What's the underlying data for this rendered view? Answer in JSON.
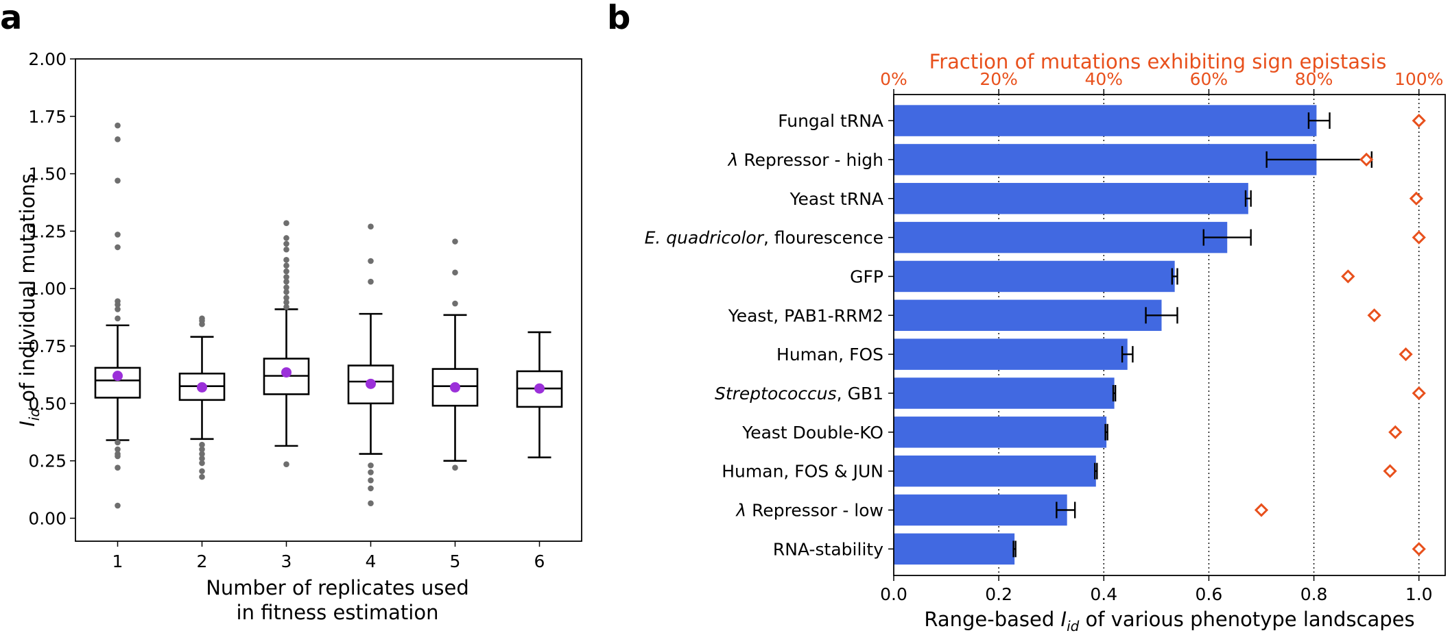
{
  "chart_data": [
    {
      "panel": "a",
      "type": "box",
      "xlabel_line1": "Number of replicates used",
      "xlabel_line2": "in fitness estimation",
      "ylabel_symbol": "I",
      "ylabel_sub": "id",
      "ylabel_rest": " of individual mutations",
      "ylim": [
        -0.1,
        2.0
      ],
      "yticks": [
        "0.00",
        "0.25",
        "0.50",
        "0.75",
        "1.00",
        "1.25",
        "1.50",
        "1.75",
        "2.00"
      ],
      "categories": [
        "1",
        "2",
        "3",
        "4",
        "5",
        "6"
      ],
      "boxes": [
        {
          "whisker_low": 0.34,
          "q1": 0.525,
          "median": 0.6,
          "q3": 0.655,
          "whisker_high": 0.84,
          "mean": 0.62,
          "outliers": [
            1.71,
            1.65,
            1.47,
            1.235,
            1.18,
            0.945,
            0.93,
            0.91,
            0.87,
            0.33,
            0.3,
            0.28,
            0.27,
            0.22,
            0.055
          ]
        },
        {
          "whisker_low": 0.345,
          "q1": 0.515,
          "median": 0.575,
          "q3": 0.63,
          "whisker_high": 0.79,
          "mean": 0.57,
          "outliers": [
            0.87,
            0.86,
            0.845,
            0.32,
            0.3,
            0.28,
            0.26,
            0.24,
            0.205,
            0.18
          ]
        },
        {
          "whisker_low": 0.315,
          "q1": 0.54,
          "median": 0.62,
          "q3": 0.695,
          "whisker_high": 0.91,
          "mean": 0.635,
          "outliers": [
            1.285,
            1.22,
            1.195,
            1.17,
            1.125,
            1.1,
            1.075,
            1.05,
            1.03,
            1.005,
            0.985,
            0.96,
            0.94,
            0.92,
            0.235
          ]
        },
        {
          "whisker_low": 0.28,
          "q1": 0.5,
          "median": 0.595,
          "q3": 0.665,
          "whisker_high": 0.89,
          "mean": 0.585,
          "outliers": [
            1.27,
            1.12,
            1.03,
            0.23,
            0.2,
            0.165,
            0.13,
            0.065
          ]
        },
        {
          "whisker_low": 0.25,
          "q1": 0.49,
          "median": 0.575,
          "q3": 0.65,
          "whisker_high": 0.885,
          "mean": 0.57,
          "outliers": [
            1.205,
            1.07,
            0.935,
            0.22
          ]
        },
        {
          "whisker_low": 0.265,
          "q1": 0.485,
          "median": 0.565,
          "q3": 0.64,
          "whisker_high": 0.81,
          "mean": 0.565,
          "outliers": []
        }
      ]
    },
    {
      "panel": "b",
      "type": "bar",
      "orientation": "horizontal",
      "xlabel_prefix": "Range-based ",
      "xlabel_symbol": "I",
      "xlabel_sub": "id",
      "xlabel_rest": " of various phenotype landscapes",
      "top_xlabel": "Fraction of mutations exhibiting sign epistasis",
      "xlim": [
        0.0,
        1.05
      ],
      "xticks": [
        "0.0",
        "0.2",
        "0.4",
        "0.6",
        "0.8",
        "1.0"
      ],
      "top_xticks": [
        "0%",
        "20%",
        "40%",
        "60%",
        "80%",
        "100%"
      ],
      "grid": "vertical dotted",
      "colors": {
        "bar": "#4169e1",
        "marker": "#e8501c",
        "error": "#000000"
      },
      "categories": [
        {
          "label": "Fungal tRNA",
          "italic": ""
        },
        {
          "label": "Repressor - high",
          "italic": "λ "
        },
        {
          "label": "Yeast tRNA",
          "italic": ""
        },
        {
          "label": ", flourescence",
          "italic": "E. quadricolor"
        },
        {
          "label": "GFP",
          "italic": ""
        },
        {
          "label": "Yeast, PAB1-RRM2",
          "italic": ""
        },
        {
          "label": "Human, FOS",
          "italic": ""
        },
        {
          "label": ", GB1",
          "italic": "Streptococcus"
        },
        {
          "label": "Yeast Double-KO",
          "italic": ""
        },
        {
          "label": "Human, FOS & JUN",
          "italic": ""
        },
        {
          "label": "Repressor - low",
          "italic": "λ "
        },
        {
          "label": "RNA-stability",
          "italic": ""
        }
      ],
      "values": [
        0.805,
        0.805,
        0.675,
        0.635,
        0.535,
        0.51,
        0.445,
        0.42,
        0.405,
        0.385,
        0.33,
        0.23
      ],
      "error_low": [
        0.79,
        0.71,
        0.67,
        0.59,
        0.53,
        0.48,
        0.435,
        0.418,
        0.403,
        0.383,
        0.31,
        0.228
      ],
      "error_high": [
        0.83,
        0.91,
        0.68,
        0.68,
        0.54,
        0.54,
        0.455,
        0.422,
        0.407,
        0.387,
        0.345,
        0.232
      ],
      "sign_epistasis_fraction": [
        1.0,
        0.9,
        0.995,
        1.0,
        0.865,
        0.915,
        0.975,
        1.0,
        0.955,
        0.945,
        0.7,
        1.0
      ]
    }
  ],
  "panel_labels": {
    "a": "a",
    "b": "b"
  }
}
